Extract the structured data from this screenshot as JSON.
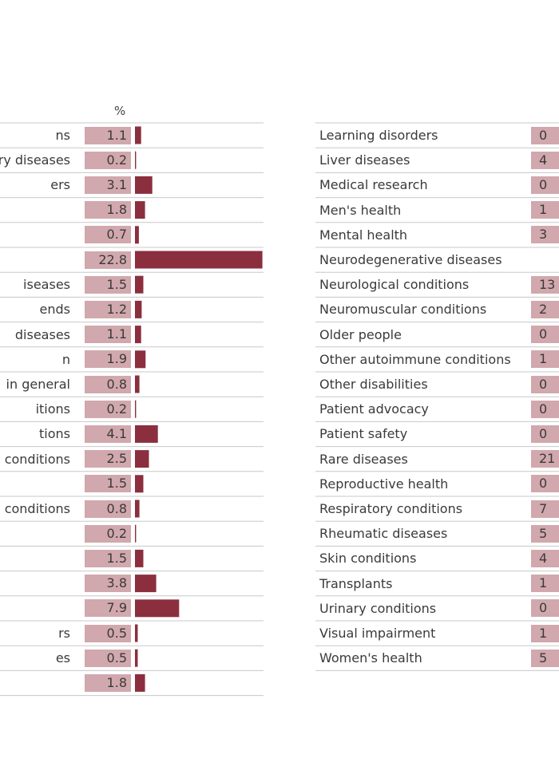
{
  "chart_data": {
    "type": "bar",
    "unit_label": "%",
    "colors": {
      "bar": "#8b2f3e",
      "value_box": "#d1a8ad",
      "rule": "#c8c8c8"
    },
    "left_column": {
      "rows": [
        {
          "label": "ns",
          "value": 1.1,
          "value_text": "1.1"
        },
        {
          "label": "ry diseases",
          "value": 0.2,
          "value_text": "0.2"
        },
        {
          "label": "ers",
          "value": 3.1,
          "value_text": "3.1"
        },
        {
          "label": "",
          "value": 1.8,
          "value_text": "1.8"
        },
        {
          "label": "",
          "value": 0.7,
          "value_text": "0.7"
        },
        {
          "label": "",
          "value": 22.8,
          "value_text": "22.8"
        },
        {
          "label": "iseases",
          "value": 1.5,
          "value_text": "1.5"
        },
        {
          "label": "ends",
          "value": 1.2,
          "value_text": "1.2"
        },
        {
          "label": "diseases",
          "value": 1.1,
          "value_text": "1.1"
        },
        {
          "label": "n",
          "value": 1.9,
          "value_text": "1.9"
        },
        {
          "label": "in general",
          "value": 0.8,
          "value_text": "0.8"
        },
        {
          "label": "itions",
          "value": 0.2,
          "value_text": "0.2"
        },
        {
          "label": "tions",
          "value": 4.1,
          "value_text": "4.1"
        },
        {
          "label": "conditions",
          "value": 2.5,
          "value_text": "2.5"
        },
        {
          "label": "",
          "value": 1.5,
          "value_text": "1.5"
        },
        {
          "label": "conditions",
          "value": 0.8,
          "value_text": "0.8"
        },
        {
          "label": "",
          "value": 0.2,
          "value_text": "0.2"
        },
        {
          "label": "",
          "value": 1.5,
          "value_text": "1.5"
        },
        {
          "label": "",
          "value": 3.8,
          "value_text": "3.8"
        },
        {
          "label": "",
          "value": 7.9,
          "value_text": "7.9"
        },
        {
          "label": "rs",
          "value": 0.5,
          "value_text": "0.5"
        },
        {
          "label": "es",
          "value": 0.5,
          "value_text": "0.5"
        },
        {
          "label": "",
          "value": 1.8,
          "value_text": "1.8"
        }
      ]
    },
    "right_column": {
      "rows": [
        {
          "label": "Learning disorders",
          "value_text": "0"
        },
        {
          "label": "Liver diseases",
          "value_text": "4"
        },
        {
          "label": "Medical research",
          "value_text": "0"
        },
        {
          "label": "Men's health",
          "value_text": "1"
        },
        {
          "label": "Mental health",
          "value_text": "3"
        },
        {
          "label": "Neurodegenerative diseases",
          "value_text": ""
        },
        {
          "label": "Neurological conditions",
          "value_text": "13"
        },
        {
          "label": "Neuromuscular conditions",
          "value_text": "2"
        },
        {
          "label": "Older people",
          "value_text": "0"
        },
        {
          "label": "Other autoimmune conditions",
          "value_text": "1"
        },
        {
          "label": "Other disabilities",
          "value_text": "0"
        },
        {
          "label": "Patient advocacy",
          "value_text": "0"
        },
        {
          "label": "Patient safety",
          "value_text": "0"
        },
        {
          "label": "Rare diseases",
          "value_text": "21"
        },
        {
          "label": "Reproductive health",
          "value_text": "0"
        },
        {
          "label": "Respiratory conditions",
          "value_text": "7"
        },
        {
          "label": "Rheumatic diseases",
          "value_text": "5"
        },
        {
          "label": "Skin conditions",
          "value_text": "4"
        },
        {
          "label": "Transplants",
          "value_text": "1"
        },
        {
          "label": "Urinary conditions",
          "value_text": "0"
        },
        {
          "label": "Visual impairment",
          "value_text": "1"
        },
        {
          "label": "Women's health",
          "value_text": "5"
        }
      ]
    }
  }
}
